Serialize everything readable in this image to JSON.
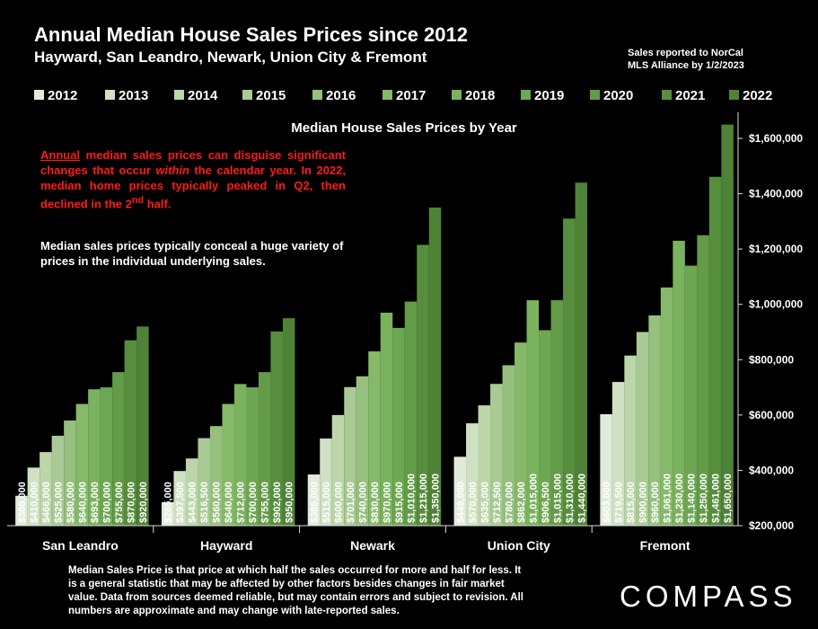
{
  "header": {
    "title": "Annual Median House Sales Prices since 2012",
    "subtitle": "Hayward, San Leandro, Newark, Union City & Fremont",
    "source_line1": "Sales reported to NorCal",
    "source_line2": "MLS Alliance by 1/2/2023"
  },
  "notes": {
    "red_annual": "Annual",
    "red_part1": " median sales prices can disguise significant changes that occur ",
    "red_within": "within",
    "red_part2": " the calendar year. In 2022, median home prices typically peaked in Q2, then declined in the 2",
    "red_sup": "nd",
    "red_part3": " half.",
    "white": "Median sales prices typically conceal a huge variety of prices in the individual underlying sales."
  },
  "footnote": "Median Sales Price is that price at which half the sales occurred for more and half for less. It is a general statistic that may be affected by other factors besides changes in fair market value. Data from sources deemed reliable, but may contain errors and subject to revision. All numbers are approximate and may change with late-reported sales.",
  "brand": "COMPASS",
  "chart_data": {
    "type": "bar",
    "title": "Median House Sales Prices by Year",
    "categories": [
      "San Leandro",
      "Hayward",
      "Newark",
      "Union City",
      "Fremont"
    ],
    "series": [
      {
        "name": "2012",
        "color": "#e2ebdb",
        "values": [
          308000,
          285000,
          385000,
          449000,
          603000
        ]
      },
      {
        "name": "2013",
        "color": "#cfe1c2",
        "values": [
          410000,
          397500,
          515000,
          570000,
          719500
        ]
      },
      {
        "name": "2014",
        "color": "#bcd6aa",
        "values": [
          466000,
          443000,
          600000,
          635000,
          815000
        ]
      },
      {
        "name": "2015",
        "color": "#a9ca95",
        "values": [
          525000,
          516500,
          701000,
          712500,
          900000
        ]
      },
      {
        "name": "2016",
        "color": "#95c07d",
        "values": [
          580000,
          560000,
          740000,
          780000,
          960000
        ]
      },
      {
        "name": "2017",
        "color": "#86b96a",
        "values": [
          640000,
          640000,
          830000,
          862000,
          1061000
        ]
      },
      {
        "name": "2018",
        "color": "#7ab25e",
        "values": [
          693000,
          712000,
          970000,
          1015000,
          1230000
        ]
      },
      {
        "name": "2019",
        "color": "#6ea753",
        "values": [
          700000,
          700000,
          915000,
          906500,
          1140000
        ]
      },
      {
        "name": "2020",
        "color": "#639b48",
        "values": [
          755000,
          755000,
          1010000,
          1015000,
          1250000
        ]
      },
      {
        "name": "2021",
        "color": "#578e3d",
        "values": [
          870000,
          902000,
          1215000,
          1310000,
          1461000
        ]
      },
      {
        "name": "2022",
        "color": "#4e8236",
        "values": [
          920000,
          950000,
          1350000,
          1440000,
          1650000
        ]
      }
    ],
    "data_labels": [
      [
        "$308,000",
        "$410,000",
        "$466,000",
        "$525,000",
        "$580,000",
        "$640,000",
        "$693,000",
        "$700,000",
        "$755,000",
        "$870,000",
        "$920,000"
      ],
      [
        "$285,000",
        "$397,500",
        "$443,000",
        "$516,500",
        "$560,000",
        "$640,000",
        "$712,000",
        "$700,000",
        "$755,000",
        "$902,000",
        "$950,000"
      ],
      [
        "$385,000",
        "$515,000",
        "$600,000",
        "$701,000",
        "$740,000",
        "$830,000",
        "$970,000",
        "$915,000",
        "$1,010,000",
        "$1,215,000",
        "$1,350,000"
      ],
      [
        "$449,000",
        "$570,000",
        "$635,000",
        "$712,500",
        "$780,000",
        "$862,000",
        "$1,015,000",
        "$906,500",
        "$1,015,000",
        "$1,310,000",
        "$1,440,000"
      ],
      [
        "$603,000",
        "$719,500",
        "$815,000",
        "$900,000",
        "$960,000",
        "$1,061,000",
        "$1,230,000",
        "$1,140,000",
        "$1,250,000",
        "$1,461,000",
        "$1,650,000"
      ]
    ],
    "ylim": [
      200000,
      1650000
    ],
    "y_ticks": [
      200000,
      400000,
      600000,
      800000,
      1000000,
      1200000,
      1400000,
      1600000
    ],
    "y_tick_labels": [
      "$200,000",
      "$400,000",
      "$600,000",
      "$800,000",
      "$1,000,000",
      "$1,200,000",
      "$1,400,000",
      "$1,600,000"
    ],
    "y_axis_position": "right",
    "legend_position": "top",
    "grid": false
  }
}
